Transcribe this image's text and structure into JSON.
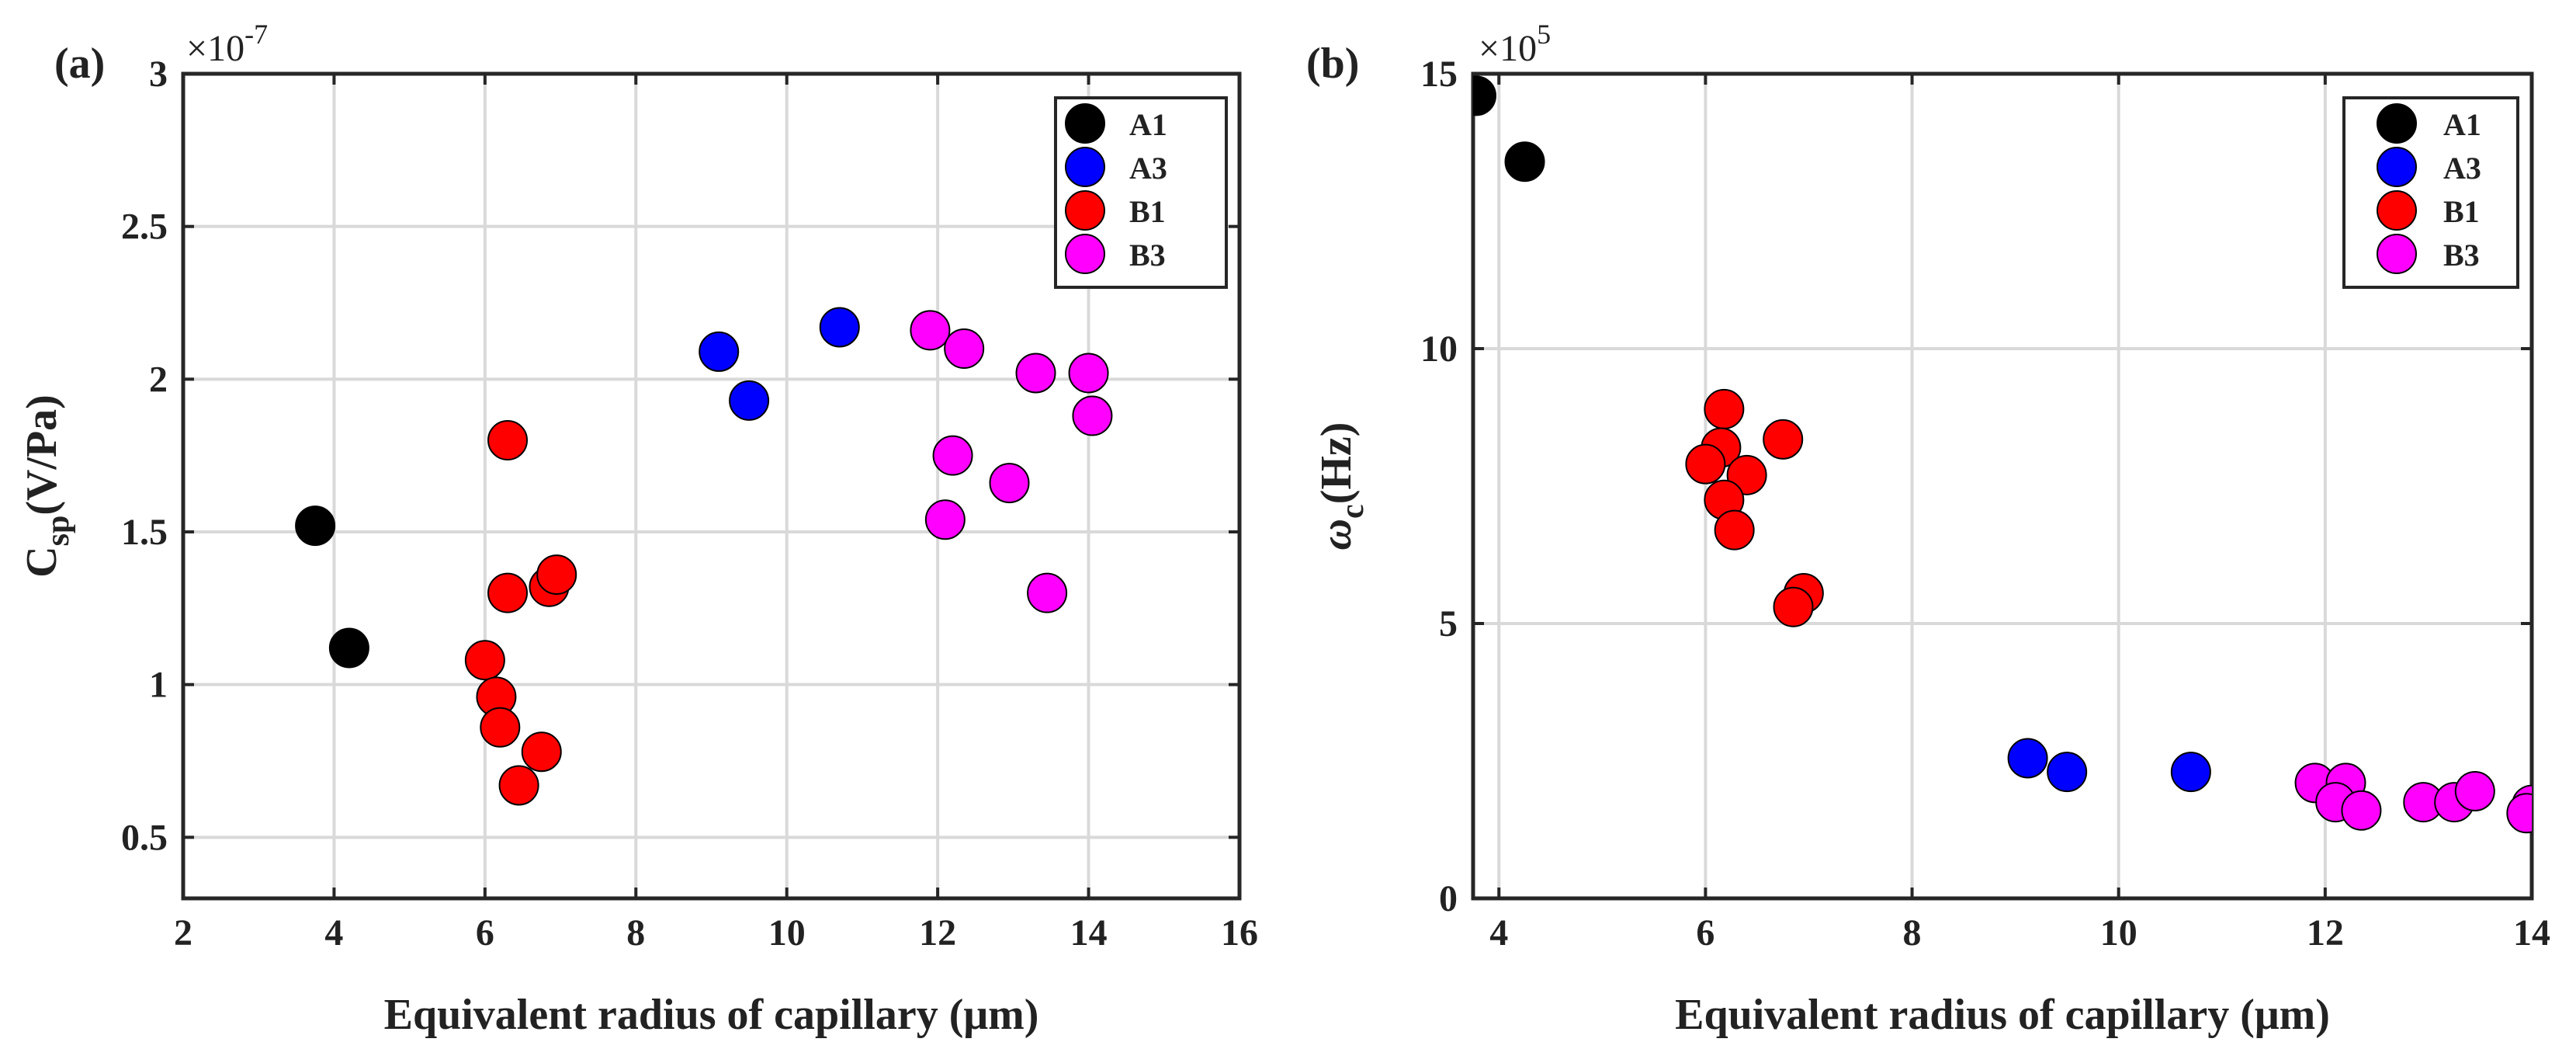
{
  "chart_data": [
    {
      "type": "scatter",
      "panel_label": "(a)",
      "xlabel": "Equivalent radius of capillary (μm)",
      "ylabel_main": "C",
      "ylabel_sub": "sp",
      "ylabel_unit": "(V/Pa)",
      "exponent_base": "×10",
      "exponent_power": "-7",
      "xlim": [
        2,
        16
      ],
      "ylim": [
        0.3,
        3
      ],
      "xticks": [
        2,
        4,
        6,
        8,
        10,
        12,
        14,
        16
      ],
      "xtick_labels": [
        "2",
        "4",
        "6",
        "8",
        "10",
        "12",
        "14",
        "16"
      ],
      "yticks": [
        0.5,
        1,
        1.5,
        2,
        2.5,
        3
      ],
      "ytick_labels": [
        "0.5",
        "1",
        "1.5",
        "2",
        "2.5",
        "3"
      ],
      "grid": true,
      "legend_position": "top-right",
      "series": [
        {
          "name": "A1",
          "color": "#000000",
          "x": [
            3.75,
            4.2
          ],
          "y": [
            1.52,
            1.12
          ]
        },
        {
          "name": "A3",
          "color": "#0000ff",
          "x": [
            9.1,
            9.5,
            10.7
          ],
          "y": [
            2.09,
            1.93,
            2.17
          ]
        },
        {
          "name": "B1",
          "color": "#ff0000",
          "x": [
            6.3,
            6.3,
            6.85,
            6.95,
            6.0,
            6.15,
            6.2,
            6.75,
            6.45
          ],
          "y": [
            1.8,
            1.3,
            1.32,
            1.36,
            1.08,
            0.96,
            0.86,
            0.78,
            0.67
          ]
        },
        {
          "name": "B3",
          "color": "#ff00ff",
          "x": [
            11.9,
            12.35,
            13.3,
            14.0,
            14.05,
            12.2,
            12.95,
            12.1,
            13.45
          ],
          "y": [
            2.16,
            2.1,
            2.02,
            2.02,
            1.88,
            1.75,
            1.66,
            1.54,
            1.3
          ]
        }
      ]
    },
    {
      "type": "scatter",
      "panel_label": "(b)",
      "xlabel": "Equivalent radius of capillary (μm)",
      "ylabel_main": "ω",
      "ylabel_sub": "c",
      "ylabel_unit": "(Hz)",
      "exponent_base": "×10",
      "exponent_power": "5",
      "xlim": [
        3.75,
        14
      ],
      "ylim": [
        0,
        15
      ],
      "xticks": [
        4,
        6,
        8,
        10,
        12,
        14
      ],
      "xtick_labels": [
        "4",
        "6",
        "8",
        "10",
        "12",
        "14"
      ],
      "yticks": [
        0,
        5,
        10,
        15
      ],
      "ytick_labels": [
        "0",
        "5",
        "10",
        "15"
      ],
      "grid": true,
      "legend_position": "top-right",
      "series": [
        {
          "name": "A1",
          "color": "#000000",
          "x": [
            3.78,
            4.25
          ],
          "y": [
            14.6,
            13.4
          ]
        },
        {
          "name": "A3",
          "color": "#0000ff",
          "x": [
            9.12,
            9.5,
            10.7
          ],
          "y": [
            2.55,
            2.3,
            2.3
          ]
        },
        {
          "name": "B1",
          "color": "#ff0000",
          "x": [
            6.18,
            6.15,
            6.0,
            6.4,
            6.75,
            6.18,
            6.28,
            6.95,
            6.85
          ],
          "y": [
            8.9,
            8.2,
            7.9,
            7.7,
            8.35,
            7.25,
            6.7,
            5.55,
            5.3
          ]
        },
        {
          "name": "B3",
          "color": "#ff00ff",
          "x": [
            11.9,
            12.2,
            12.1,
            12.35,
            12.95,
            13.25,
            13.45,
            14.0,
            13.95
          ],
          "y": [
            2.1,
            2.1,
            1.75,
            1.6,
            1.75,
            1.75,
            1.95,
            1.7,
            1.55
          ]
        }
      ]
    }
  ]
}
